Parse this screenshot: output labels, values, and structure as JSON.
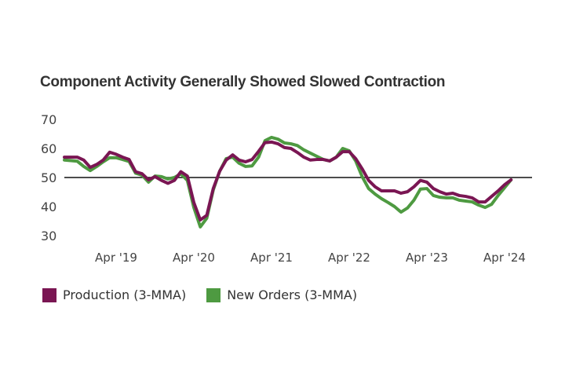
{
  "chart_data": {
    "type": "line",
    "title": "Component Activity Generally Showed Slowed Contraction",
    "xlabel": "",
    "ylabel": "",
    "ylim": [
      30,
      70
    ],
    "yticks": [
      "70",
      "60",
      "50",
      "40",
      "30"
    ],
    "ytick_values": [
      70,
      60,
      50,
      40,
      30
    ],
    "xticks": [
      "Apr '19",
      "Apr '20",
      "Apr '21",
      "Apr '22",
      "Apr '23",
      "Apr '24"
    ],
    "xtick_indices": [
      8,
      20,
      32,
      44,
      56,
      68
    ],
    "x_start": "Aug 2018",
    "x_end": "May 2024",
    "reference_line": 50,
    "grid": false,
    "legend_position": "bottom-left",
    "series": [
      {
        "name": "Production (3-MMA)",
        "color": "#7a1653",
        "values": [
          57,
          57,
          57,
          56,
          53.5,
          54.5,
          56,
          58.7,
          58,
          57,
          56.2,
          52,
          51.3,
          49.2,
          50.3,
          49,
          48,
          49,
          52,
          50.5,
          41.4,
          35.4,
          37,
          46.2,
          52.2,
          56,
          57.8,
          56,
          55.4,
          56.2,
          59,
          62,
          62.2,
          61.6,
          60.3,
          60,
          58.6,
          57,
          56,
          56.2,
          56.2,
          55.7,
          57,
          58.9,
          58.9,
          56.5,
          53,
          49,
          46.8,
          45.4,
          45.4,
          45.4,
          44.6,
          45.1,
          46.8,
          49,
          48.4,
          46.2,
          45.1,
          44.3,
          44.6,
          43.8,
          43.5,
          43,
          41.6,
          41.6,
          43.5,
          45.4,
          47.5,
          49.2
        ]
      },
      {
        "name": "New Orders (3-MMA)",
        "color": "#4e9a41",
        "values": [
          56,
          55.8,
          55.6,
          53.8,
          52.4,
          53.8,
          55.4,
          56.8,
          56.8,
          56.2,
          55.5,
          51.5,
          50.8,
          48.4,
          50.5,
          50.3,
          49.5,
          50,
          51.3,
          49,
          39.7,
          33,
          36,
          45.7,
          52.2,
          56.5,
          57,
          54.9,
          53.8,
          54,
          57,
          62.7,
          63.8,
          63.2,
          61.9,
          61.6,
          61,
          59.5,
          58.4,
          57.3,
          56.2,
          55.7,
          57,
          60,
          59.2,
          55.7,
          50.3,
          46.2,
          44.3,
          42.7,
          41.4,
          40,
          38.1,
          39.5,
          42.2,
          46,
          46.2,
          43.8,
          43.2,
          43,
          43,
          42.2,
          41.9,
          41.6,
          40.5,
          39.7,
          40.8,
          43.8,
          46.5,
          49.2
        ]
      }
    ]
  },
  "legend": {
    "items": [
      {
        "label": "Production (3-MMA)",
        "color": "#7a1653"
      },
      {
        "label": "New Orders (3-MMA)",
        "color": "#4e9a41"
      }
    ]
  }
}
